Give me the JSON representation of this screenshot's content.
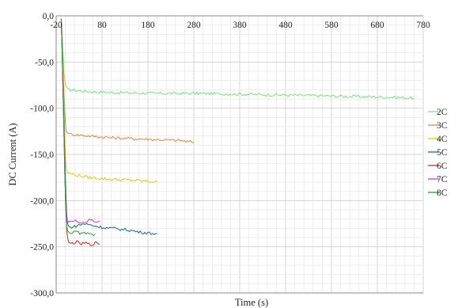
{
  "chart_data": {
    "type": "line",
    "title": "",
    "xlabel": "Time (s)",
    "ylabel": "DC Current (A)",
    "xlim": [
      -20,
      780
    ],
    "ylim": [
      -300,
      0
    ],
    "x_ticks": [
      -20,
      80,
      180,
      280,
      380,
      480,
      580,
      680,
      780
    ],
    "x_tick_labels": [
      "-20",
      "80",
      "180",
      "280",
      "380",
      "480",
      "580",
      "680",
      "780"
    ],
    "y_ticks": [
      0,
      -50,
      -100,
      -150,
      -200,
      -250,
      -300
    ],
    "y_tick_labels": [
      "0,0",
      "-50,0",
      "-100,0",
      "-150,0",
      "-200,0",
      "-250,0",
      "-300,0"
    ],
    "grid": true,
    "legend_position": "right",
    "series": [
      {
        "name": "2C",
        "color": "#7de37d",
        "x": [
          -9,
          -7,
          -5,
          -3,
          0,
          5,
          50,
          100,
          200,
          300,
          400,
          500,
          600,
          700,
          760
        ],
        "y": [
          -3,
          -18,
          -40,
          -62,
          -75,
          -80,
          -82,
          -83,
          -84,
          -84,
          -85,
          -86,
          -87,
          -88,
          -89
        ]
      },
      {
        "name": "3C",
        "color": "#e8844a",
        "x": [
          -9,
          -7,
          -5,
          -3,
          -1,
          0,
          2,
          10,
          50,
          100,
          150,
          200,
          250,
          280
        ],
        "y": [
          -3,
          -25,
          -55,
          -85,
          -105,
          -115,
          -125,
          -128,
          -130,
          -132,
          -133,
          -134,
          -135,
          -137
        ]
      },
      {
        "name": "4C",
        "color": "#f2c316",
        "x": [
          -9,
          -7,
          -5,
          -3,
          -1,
          0,
          2,
          5,
          20,
          50,
          100,
          150,
          200
        ],
        "y": [
          -3,
          -30,
          -65,
          -100,
          -135,
          -150,
          -165,
          -170,
          -172,
          -175,
          -177,
          -178,
          -180
        ]
      },
      {
        "name": "5C",
        "color": "#1e6b6b",
        "x": [
          -9,
          -7,
          -5,
          -3,
          -1,
          1,
          3,
          5,
          7,
          10,
          20,
          40,
          60,
          80,
          100,
          120,
          140,
          160,
          180,
          200
        ],
        "y": [
          -3,
          -35,
          -75,
          -115,
          -155,
          -190,
          -215,
          -225,
          -228,
          -229,
          -228,
          -225,
          -227,
          -229,
          -230,
          -231,
          -232,
          -234,
          -235,
          -236
        ]
      },
      {
        "name": "6C",
        "color": "#e8221c",
        "x": [
          -9,
          -7,
          -5,
          -3,
          -1,
          1,
          3,
          5,
          7,
          9,
          15,
          25,
          35,
          45,
          55,
          65,
          75
        ],
        "y": [
          -3,
          -40,
          -85,
          -130,
          -175,
          -210,
          -232,
          -240,
          -245,
          -247,
          -246,
          -245,
          -247,
          -246,
          -248,
          -246,
          -247
        ]
      },
      {
        "name": "7C",
        "color": "#c23dd3",
        "x": [
          -9,
          -7,
          -5,
          -3,
          -1,
          1,
          3,
          5,
          8,
          15,
          25,
          35,
          45,
          55,
          65,
          75
        ],
        "y": [
          -3,
          -38,
          -80,
          -125,
          -170,
          -205,
          -220,
          -223,
          -222,
          -223,
          -222,
          -224,
          -223,
          -221,
          -223,
          -222
        ]
      },
      {
        "name": "8C",
        "color": "#2a9d3a",
        "x": [
          -9,
          -7,
          -5,
          -3,
          -1,
          1,
          3,
          5,
          8,
          15,
          25,
          35,
          45,
          55,
          65
        ],
        "y": [
          -3,
          -38,
          -82,
          -128,
          -172,
          -208,
          -228,
          -232,
          -234,
          -235,
          -234,
          -236,
          -235,
          -237,
          -236
        ]
      }
    ]
  }
}
